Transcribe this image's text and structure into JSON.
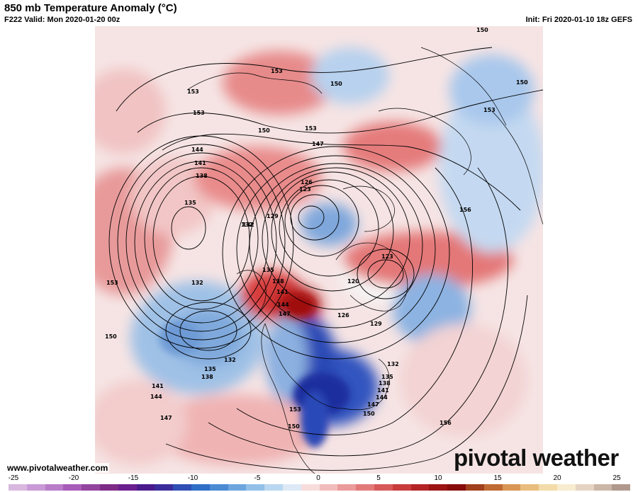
{
  "header": {
    "title": "850 mb Temperature Anomaly (°C)",
    "valid": "F222 Valid: Mon 2020-01-20 00z",
    "init": "Init: Fri 2020-01-10 18z GEFS"
  },
  "footer": {
    "website": "www.pivotalweather.com",
    "logo": "pivotal weather"
  },
  "colorbar": {
    "ticks": [
      "-25",
      "-20",
      "-15",
      "-10",
      "-5",
      "0",
      "5",
      "10",
      "15",
      "20",
      "25"
    ],
    "colors": [
      "#d9b8e0",
      "#c99ad6",
      "#b97cc9",
      "#a75cb9",
      "#93449f",
      "#7d2b86",
      "#6b1f8e",
      "#4a1a8c",
      "#3b2c9c",
      "#2f4fb5",
      "#2f6ec7",
      "#4a8bd4",
      "#6da6de",
      "#93c0e8",
      "#b9d7f0",
      "#dde9f6",
      "#f7dcdc",
      "#f2bcbc",
      "#eb9b9b",
      "#e37a7a",
      "#d85959",
      "#c93c3c",
      "#b52424",
      "#9c1414",
      "#870c0c",
      "#a0401c",
      "#c06a34",
      "#d99654",
      "#e9bd7e",
      "#f3dcaa",
      "#f7eccf",
      "#e6d4c2",
      "#cbb6a7",
      "#b0998c"
    ],
    "colors_semantic": "purple (cold) through blues, white near 0, reds to browns/tans (warm)"
  },
  "map": {
    "projection": "north polar stereographic",
    "contour_labels": [
      "150",
      "153",
      "153",
      "153",
      "153",
      "150",
      "150",
      "150",
      "147",
      "153",
      "144",
      "141",
      "138",
      "135",
      "132",
      "132",
      "153",
      "150",
      "147",
      "144",
      "141",
      "138",
      "135",
      "132",
      "126",
      "123",
      "129",
      "132",
      "135",
      "138",
      "141",
      "144",
      "147",
      "120",
      "123",
      "126",
      "129",
      "132",
      "135",
      "138",
      "141",
      "144",
      "147",
      "150",
      "153",
      "156",
      "156",
      "150"
    ],
    "colors": {
      "warm_anomaly": "#e06a6a",
      "strong_warm": "#c01a1a",
      "cold_anomaly": "#7aa8dc",
      "strong_cold": "#1f3fb0",
      "neutral": "#f5f5f5",
      "coastline": "#000000"
    }
  }
}
